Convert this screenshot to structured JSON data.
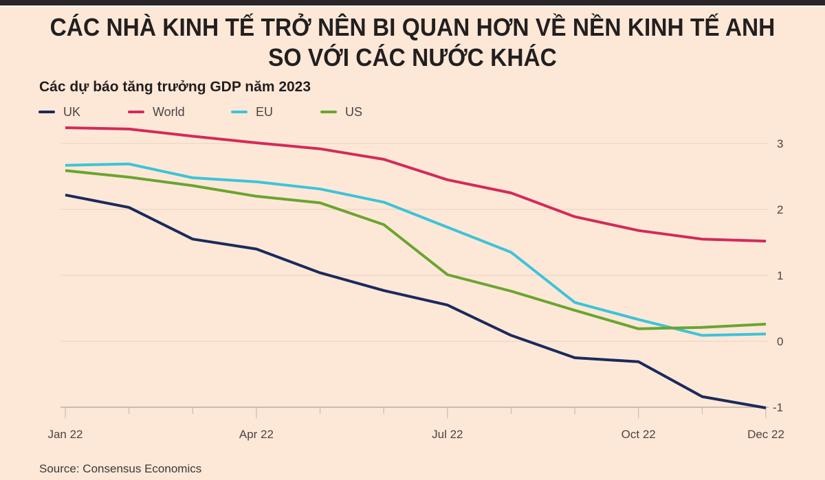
{
  "header": {
    "title_line1": "CÁC NHÀ KINH TẾ TRỞ NÊN BI QUAN HƠN VỀ NỀN KINH TẾ ANH",
    "title_line2": "SO VỚI CÁC NƯỚC KHÁC"
  },
  "source": "Source: Consensus Economics",
  "chart_data": {
    "type": "line",
    "title": "CÁC NHÀ KINH TẾ TRỞ NÊN BI QUAN HƠN VỀ NỀN KINH TẾ ANH SO VỚI CÁC NƯỚC KHÁC",
    "subtitle": "Các dự báo tăng trưởng GDP năm 2023",
    "xlabel": "",
    "ylabel": "",
    "x": [
      "Jan 22",
      "Feb 22",
      "Mar 22",
      "Apr 22",
      "May 22",
      "Jun 22",
      "Jul 22",
      "Aug 22",
      "Sep 22",
      "Oct 22",
      "Nov 22",
      "Dec 22"
    ],
    "x_tick_labels": [
      {
        "index": 0,
        "label": "Jan 22"
      },
      {
        "index": 3,
        "label": "Apr 22"
      },
      {
        "index": 6,
        "label": "Jul 22"
      },
      {
        "index": 9,
        "label": "Oct 22"
      },
      {
        "index": 11,
        "label": "Dec 22"
      }
    ],
    "yticks": [
      3,
      2,
      1,
      0,
      -1
    ],
    "ylim": [
      -1,
      3
    ],
    "y_axis_side": "right",
    "grid": true,
    "legend_position": "top-left",
    "series": [
      {
        "name": "UK",
        "color": "#1b2a5c",
        "values": [
          2.22,
          2.03,
          1.55,
          1.4,
          1.04,
          0.77,
          0.55,
          0.09,
          -0.25,
          -0.31,
          -0.84,
          -1.01
        ]
      },
      {
        "name": "World",
        "color": "#d42a5a",
        "values": [
          3.24,
          3.22,
          3.11,
          3.01,
          2.92,
          2.76,
          2.45,
          2.25,
          1.89,
          1.68,
          1.55,
          1.52
        ]
      },
      {
        "name": "EU",
        "color": "#3ec3d8",
        "values": [
          2.67,
          2.69,
          2.48,
          2.42,
          2.31,
          2.11,
          1.73,
          1.35,
          0.59,
          0.33,
          0.09,
          0.11
        ]
      },
      {
        "name": "US",
        "color": "#6aa52f",
        "values": [
          2.59,
          2.49,
          2.36,
          2.2,
          2.1,
          1.77,
          1.01,
          0.76,
          0.47,
          0.19,
          0.21,
          0.26
        ]
      }
    ]
  }
}
